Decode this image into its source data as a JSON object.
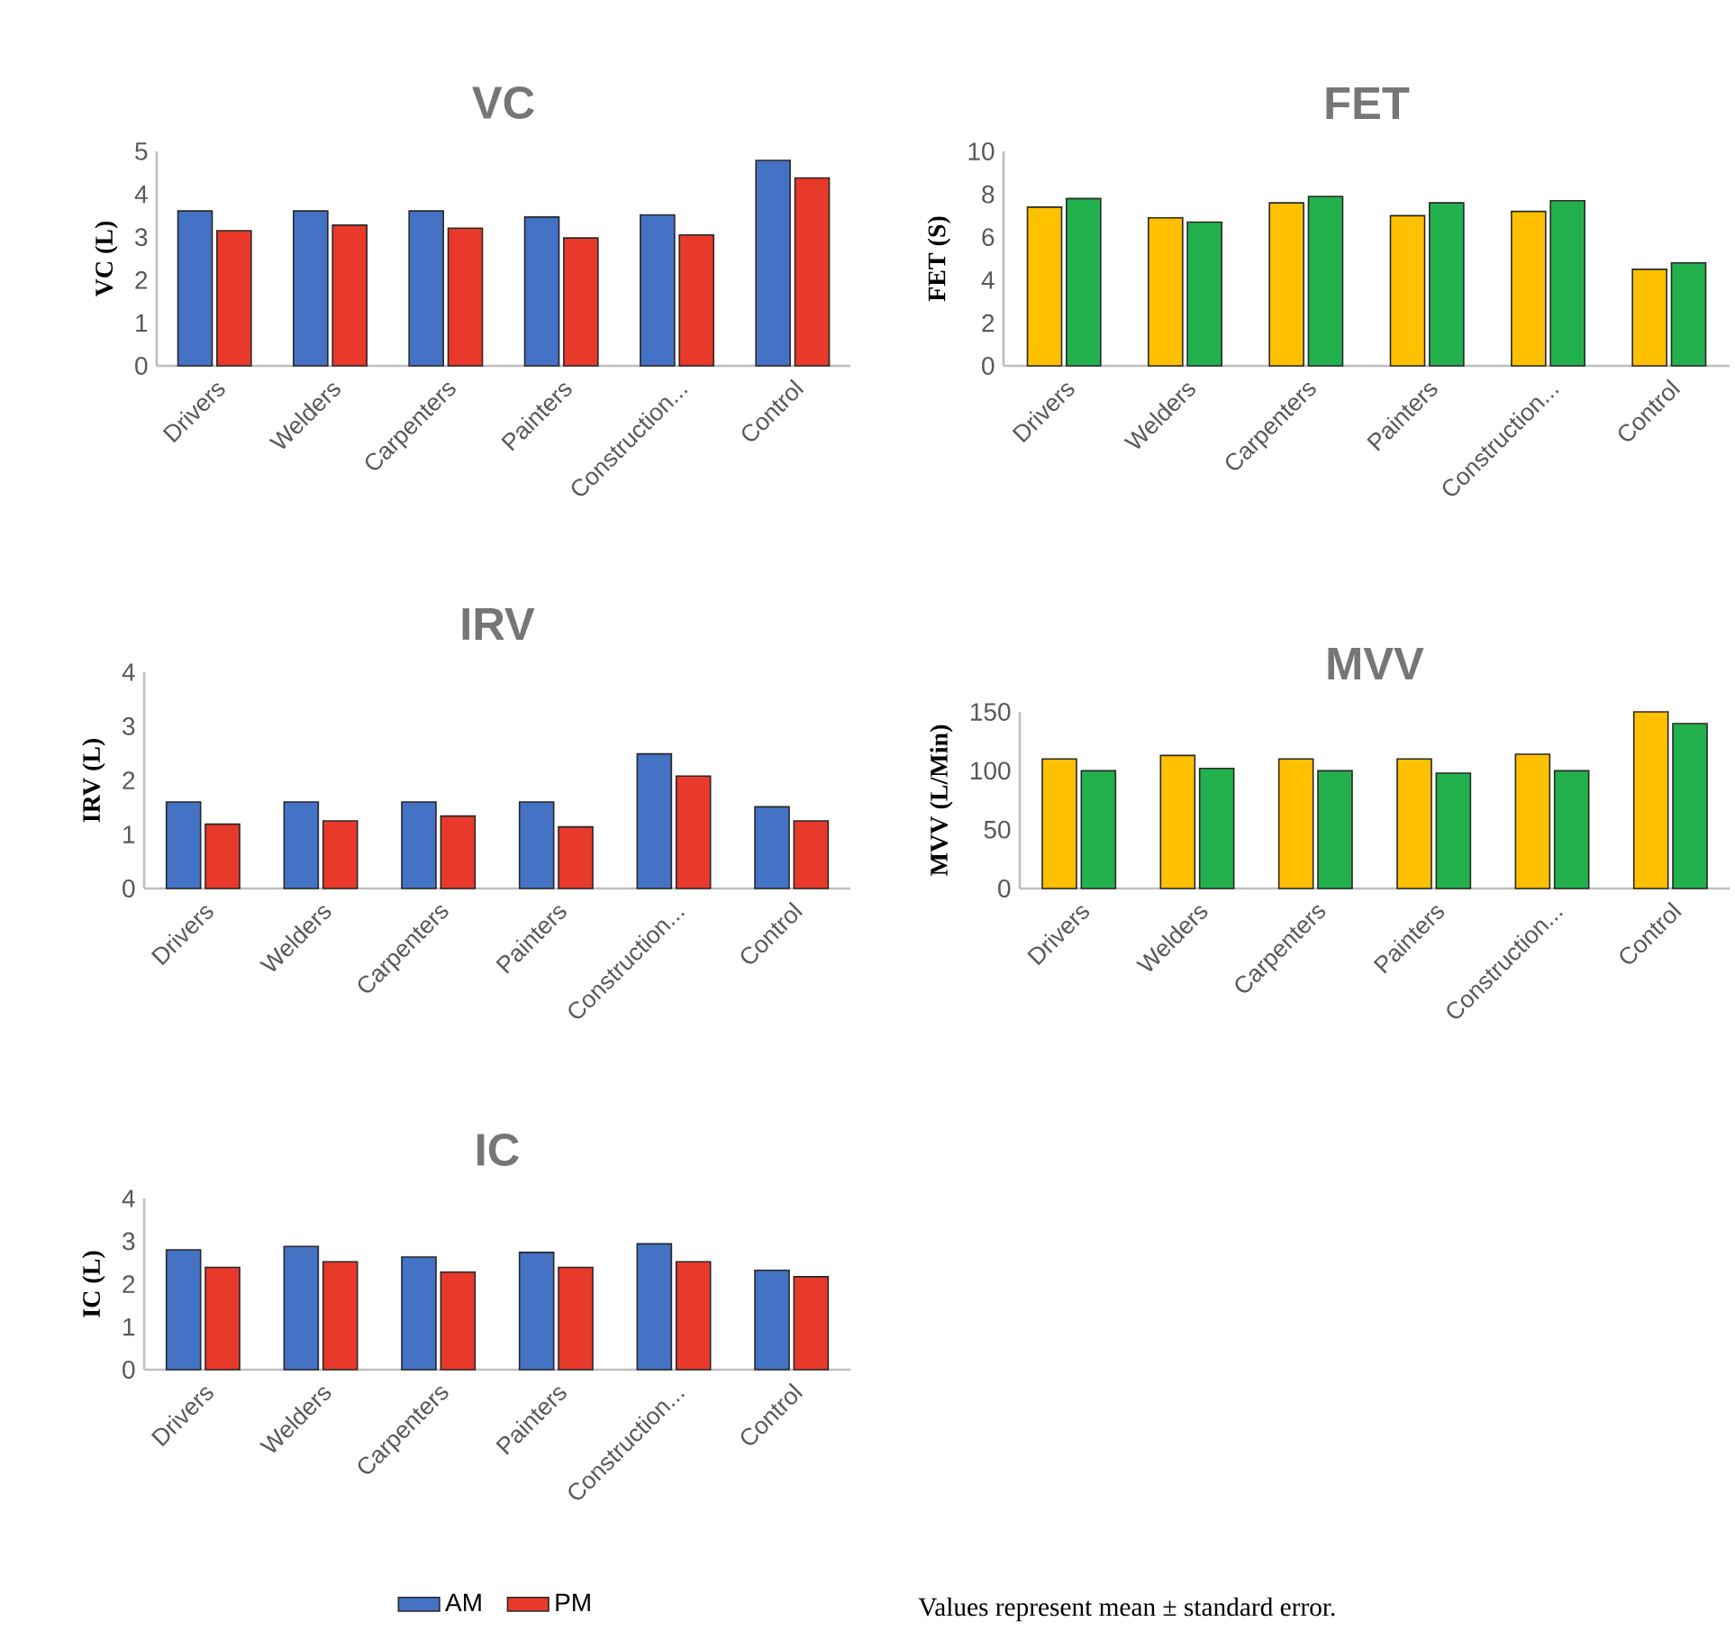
{
  "chart_data": [
    {
      "type": "bar",
      "title": "VC",
      "ylabel": "VC (L)",
      "categories": [
        "Drivers",
        "Welders",
        "Carpenters",
        "Painters",
        "Construction...",
        "Control"
      ],
      "ylim": [
        0,
        5
      ],
      "yticks": [
        0,
        1,
        2,
        3,
        4,
        5
      ],
      "series": [
        {
          "color": "#4472c4",
          "values": [
            3.61,
            3.61,
            3.61,
            3.47,
            3.52,
            4.79
          ]
        },
        {
          "color": "#e8392b",
          "values": [
            3.15,
            3.28,
            3.21,
            2.98,
            3.05,
            4.38
          ]
        }
      ]
    },
    {
      "type": "bar",
      "title": "FET",
      "ylabel": "FET (S)",
      "categories": [
        "Drivers",
        "Welders",
        "Carpenters",
        "Painters",
        "Construction...",
        "Control"
      ],
      "ylim": [
        0,
        10
      ],
      "yticks": [
        0,
        2,
        4,
        6,
        8,
        10
      ],
      "series": [
        {
          "color": "#ffc000",
          "values": [
            7.4,
            6.9,
            7.6,
            7.0,
            7.2,
            4.5
          ]
        },
        {
          "color": "#22b14c",
          "values": [
            7.8,
            6.7,
            7.9,
            7.6,
            7.7,
            4.8
          ]
        }
      ]
    },
    {
      "type": "bar",
      "title": "IRV",
      "ylabel": "IRV (L)",
      "categories": [
        "Drivers",
        "Welders",
        "Carpenters",
        "Painters",
        "Construction...",
        "Control"
      ],
      "ylim": [
        0,
        4
      ],
      "yticks": [
        0,
        1,
        2,
        3,
        4
      ],
      "series": [
        {
          "color": "#4472c4",
          "values": [
            1.6,
            1.6,
            1.6,
            1.6,
            2.49,
            1.51
          ]
        },
        {
          "color": "#e8392b",
          "values": [
            1.19,
            1.25,
            1.34,
            1.14,
            2.08,
            1.25
          ]
        }
      ]
    },
    {
      "type": "bar",
      "title": "MVV",
      "ylabel": "MVV (L/Min)",
      "categories": [
        "Drivers",
        "Welders",
        "Carpenters",
        "Painters",
        "Construction...",
        "Control"
      ],
      "ylim": [
        0,
        150
      ],
      "yticks": [
        0,
        50,
        100,
        150
      ],
      "series": [
        {
          "color": "#ffc000",
          "values": [
            110,
            113,
            110,
            110,
            114,
            150
          ]
        },
        {
          "color": "#22b14c",
          "values": [
            100,
            102,
            100,
            98,
            100,
            140
          ]
        }
      ]
    },
    {
      "type": "bar",
      "title": "IC",
      "ylabel": "IC (L)",
      "categories": [
        "Drivers",
        "Welders",
        "Carpenters",
        "Painters",
        "Construction...",
        "Control"
      ],
      "ylim": [
        0,
        4
      ],
      "yticks": [
        0,
        1,
        2,
        3,
        4
      ],
      "legend": "bottom",
      "annotations": [
        "Values represent mean ± standard error."
      ],
      "series": [
        {
          "name": "AM",
          "color": "#4472c4",
          "values": [
            2.8,
            2.88,
            2.63,
            2.74,
            2.94,
            2.32
          ]
        },
        {
          "name": "PM",
          "color": "#e8392b",
          "values": [
            2.39,
            2.52,
            2.28,
            2.39,
            2.52,
            2.17
          ]
        }
      ]
    }
  ]
}
